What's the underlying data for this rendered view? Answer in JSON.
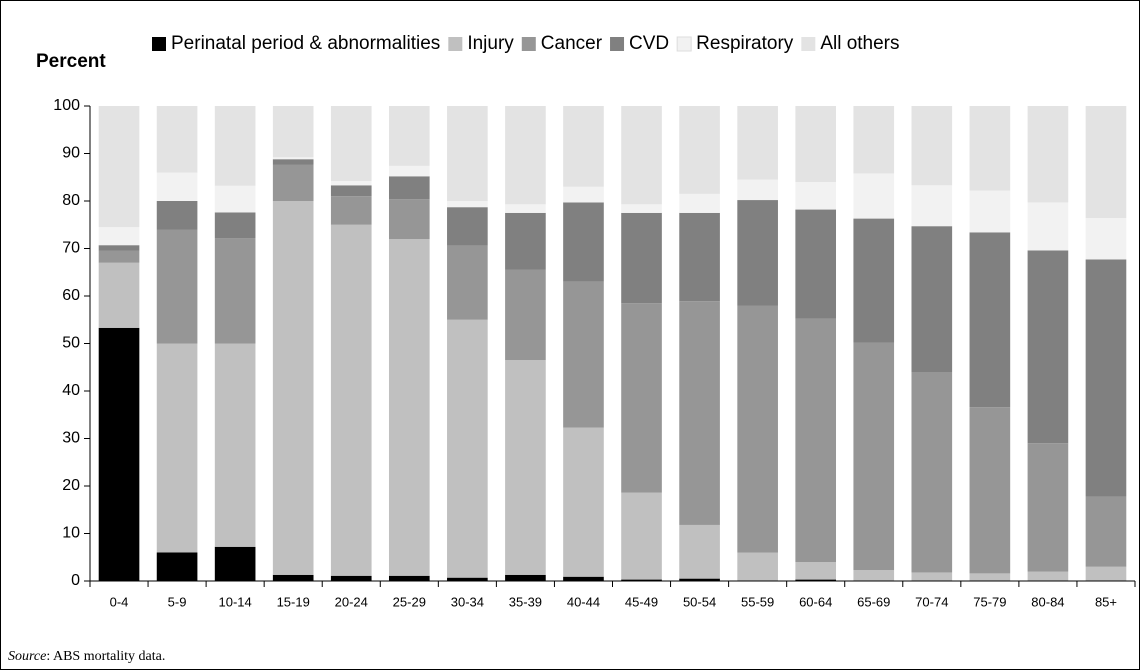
{
  "chart_data": {
    "type": "stacked_bar",
    "y_label": "Percent",
    "source_label": "Source",
    "source_text": ":  ABS mortality data.",
    "categories": [
      "0-4",
      "5-9",
      "10-14",
      "15-19",
      "20-24",
      "25-29",
      "30-34",
      "35-39",
      "40-44",
      "45-49",
      "50-54",
      "55-59",
      "60-64",
      "65-69",
      "70-74",
      "75-79",
      "80-84",
      "85+"
    ],
    "series": [
      {
        "name": "Perinatal period & abnormalities",
        "color": "#000000",
        "values": [
          53.3,
          6,
          7.2,
          1.3,
          1.1,
          1.1,
          0.7,
          1.3,
          0.9,
          0.3,
          0.5,
          0.1,
          0.3,
          0.1,
          0.1,
          0.1,
          0.1,
          0.1
        ]
      },
      {
        "name": "Injury",
        "color": "#c0c0c0",
        "values": [
          13.7,
          44,
          42.8,
          78.7,
          73.9,
          70.9,
          54.3,
          45.2,
          31.4,
          18.3,
          11.3,
          5.9,
          3.7,
          2.2,
          1.7,
          1.5,
          1.9,
          2.9
        ]
      },
      {
        "name": "Cancer",
        "color": "#969696",
        "values": [
          2.5,
          24,
          22.2,
          7.6,
          6,
          8.4,
          15.6,
          19,
          30.7,
          39.9,
          47.1,
          52,
          51.2,
          47.9,
          42.2,
          35,
          27,
          14.8
        ]
      },
      {
        "name": "CVD",
        "color": "#808080",
        "values": [
          1.2,
          6,
          5.4,
          1.2,
          2.3,
          4.8,
          8.1,
          12,
          16.7,
          19,
          18.6,
          22.2,
          23,
          26.1,
          30.7,
          36.8,
          40.6,
          49.9
        ]
      },
      {
        "name": "Respiratory",
        "color": "#f2f2f2",
        "values": [
          3.8,
          6,
          5.6,
          0.4,
          0.9,
          2.2,
          1.3,
          1.8,
          3.3,
          1.8,
          4,
          4.3,
          5.8,
          9.5,
          8.6,
          8.8,
          10.1,
          8.7
        ]
      },
      {
        "name": "All others",
        "color": "#e3e3e3",
        "values": [
          25.5,
          14,
          16.8,
          10.8,
          15.8,
          12.6,
          20,
          20.7,
          17,
          20.7,
          18.5,
          15.5,
          16,
          14.2,
          16.7,
          17.8,
          20.3,
          23.6
        ]
      }
    ],
    "ylim": [
      0,
      100
    ],
    "yticks": [
      0,
      10,
      20,
      30,
      40,
      50,
      60,
      70,
      80,
      90,
      100
    ],
    "grid": false,
    "legend": "top"
  }
}
